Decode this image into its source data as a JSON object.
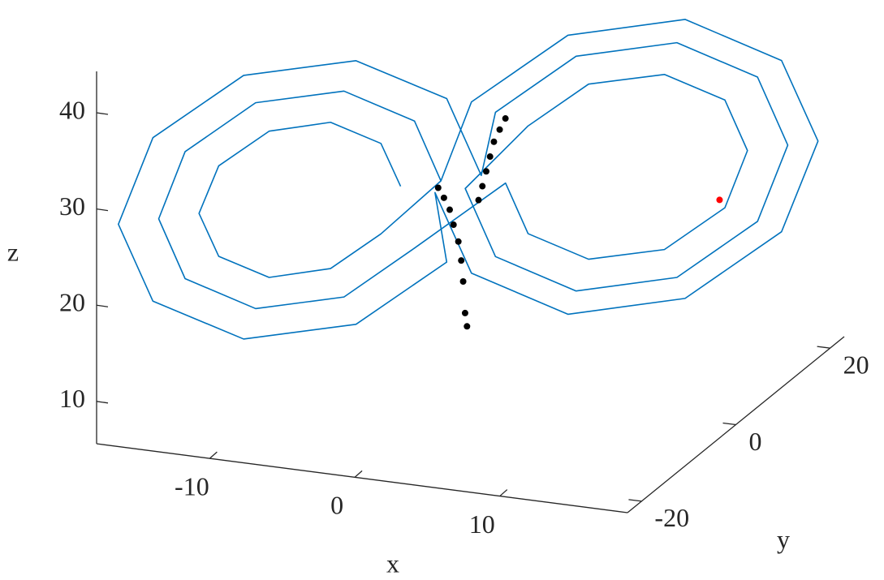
{
  "chart_data": {
    "type": "line3d",
    "xlabel": "x",
    "ylabel": "y",
    "zlabel": "z",
    "xlim": [
      -17.8,
      18.8
    ],
    "ylim": [
      -23,
      23
    ],
    "zlim": [
      5.6,
      44.3
    ],
    "xticks": [
      -10,
      0,
      10
    ],
    "yticks": [
      -20,
      0,
      20
    ],
    "zticks": [
      10,
      20,
      30,
      40
    ],
    "series": [
      {
        "color": "#0072bd",
        "x": [
          -3.5,
          -4.5,
          -7.0,
          -10.0,
          -12.5,
          -13.5,
          -12.5,
          -10.0,
          -7.0,
          -4.5,
          -1.5,
          -2.8,
          -6.3,
          -10.7,
          -14.2,
          -15.5,
          -14.2,
          -10.7,
          -6.3,
          -2.8,
          2.5,
          3.6,
          6.6,
          10.4,
          13.4,
          14.5,
          13.4,
          10.4,
          6.6,
          3.6,
          0.5,
          2.0,
          6.0,
          11.0,
          15.0,
          16.5,
          15.0,
          11.0,
          6.0,
          2.0,
          0.5,
          -1.2,
          -5.7,
          -11.3,
          -15.8,
          -17.5,
          -15.8,
          -11.3,
          -5.7,
          -1.2,
          -1.0,
          0.8,
          5.6,
          11.4,
          16.2,
          18.0,
          16.2,
          11.4,
          5.6,
          0.8,
          -1.5
        ],
        "y": [
          -2.5,
          -3.6,
          -6.6,
          -10.4,
          -13.4,
          -14.5,
          -13.4,
          -10.4,
          -6.6,
          -3.6,
          -0.1,
          -1.7,
          -5.9,
          -11.1,
          -15.3,
          -16.9,
          -15.3,
          -11.1,
          -5.9,
          -1.7,
          1.3,
          2.7,
          6.3,
          10.7,
          14.3,
          15.7,
          14.3,
          10.7,
          6.3,
          2.7,
          -1.1,
          0.7,
          5.5,
          11.5,
          16.3,
          18.1,
          16.3,
          11.5,
          5.5,
          0.7,
          2.3,
          0.2,
          -5.2,
          -11.8,
          -17.2,
          -19.3,
          -17.2,
          -11.8,
          -5.2,
          0.2,
          -2.9,
          -0.7,
          5.0,
          12.0,
          17.7,
          19.9,
          17.7,
          12.0,
          5.0,
          -0.7,
          -0.1
        ],
        "z": [
          27,
          31.7,
          34.6,
          34.6,
          31.7,
          27,
          22.3,
          19.4,
          19.4,
          22.3,
          27,
          33.6,
          37.7,
          37.7,
          33.6,
          27,
          20.4,
          16.3,
          16.3,
          20.4,
          27,
          21.4,
          17.9,
          17.9,
          21.4,
          27,
          32.6,
          36.1,
          36.1,
          32.6,
          27,
          19.5,
          14.8,
          14.8,
          19.5,
          27,
          34.5,
          39.2,
          39.2,
          34.5,
          27,
          35.5,
          40.7,
          40.7,
          35.5,
          27,
          18.5,
          13.3,
          13.3,
          18.5,
          27,
          18.1,
          12.5,
          12.5,
          18.1,
          27,
          35.9,
          41.5,
          41.5,
          35.9,
          27
        ]
      }
    ],
    "scatter": [
      {
        "color": "#000000",
        "x": [
          0.2,
          0.1,
          0,
          -0.1,
          -0.25,
          -0.5,
          -0.7,
          -1.0,
          -1.3,
          0.8,
          1.0,
          1.2,
          1.4,
          1.6,
          1.9,
          2.2
        ],
        "y": [
          0.2,
          0.1,
          0,
          -0.1,
          -0.25,
          -0.5,
          -0.7,
          -1.0,
          -1.3,
          0.8,
          1.0,
          1.2,
          1.4,
          1.6,
          1.9,
          2.2
        ],
        "z": [
          12.1,
          13.5,
          16.8,
          19.0,
          21.0,
          22.8,
          24.4,
          25.7,
          26.8,
          25.1,
          26.5,
          28.0,
          29.5,
          31.0,
          32.2,
          33.3
        ]
      },
      {
        "color": "#ff0000",
        "x": [
          13
        ],
        "y": [
          14.4
        ],
        "z": [
          22.1
        ]
      }
    ]
  }
}
